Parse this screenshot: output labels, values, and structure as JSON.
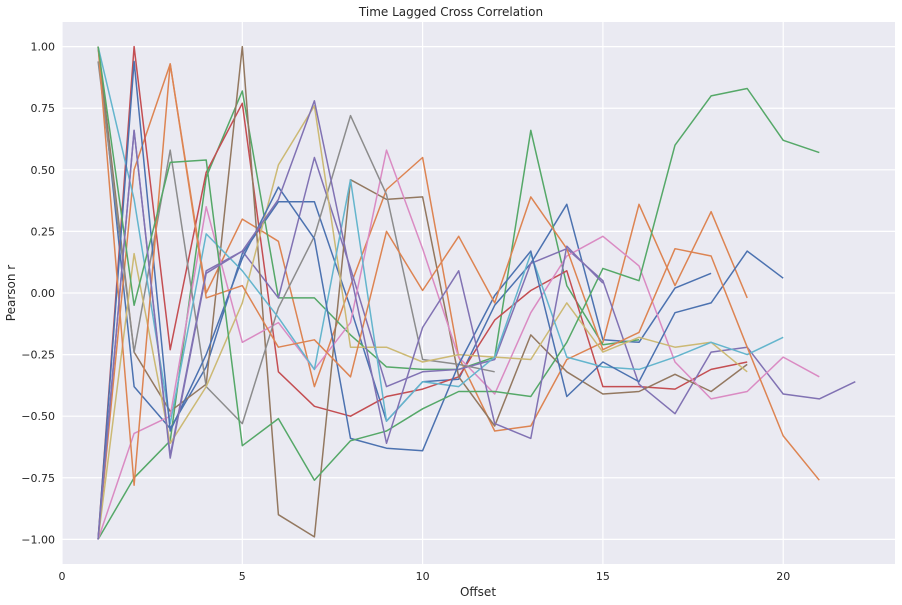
{
  "chart_data": {
    "type": "line",
    "title": "Time Lagged Cross Correlation",
    "xlabel": "Offset",
    "ylabel": "Pearson r",
    "xlim": [
      0,
      23.1
    ],
    "ylim": [
      -1.1,
      1.1
    ],
    "xticks": [
      0,
      5,
      10,
      15,
      20
    ],
    "xtick_labels": [
      "0",
      "5",
      "10",
      "15",
      "20"
    ],
    "yticks": [
      -1.0,
      -0.75,
      -0.5,
      -0.25,
      0.0,
      0.25,
      0.5,
      0.75,
      1.0
    ],
    "ytick_labels": [
      "−1.00",
      "−0.75",
      "−0.50",
      "−0.25",
      "0.00",
      "0.25",
      "0.50",
      "0.75",
      "1.00"
    ],
    "grid": true,
    "background": "#eaeaf2",
    "series": [
      {
        "color": "#4c72b0",
        "x": [
          1,
          2,
          3,
          4,
          5,
          6,
          7,
          8,
          9,
          10,
          11,
          12,
          13,
          14,
          15,
          16,
          17,
          18
        ],
        "y": [
          1.0,
          -0.38,
          -0.55,
          -0.3,
          0.16,
          0.37,
          0.37,
          -0.06,
          -0.52,
          -0.36,
          -0.35,
          -0.05,
          0.12,
          0.36,
          -0.19,
          -0.2,
          0.02,
          0.08
        ]
      },
      {
        "color": "#dd8452",
        "x": [
          1,
          2,
          3,
          4,
          5,
          6,
          7,
          8,
          9,
          10,
          11,
          12,
          13,
          14,
          15,
          16,
          17,
          18,
          19
        ],
        "y": [
          -1.0,
          0.5,
          0.93,
          0.0,
          0.3,
          0.21,
          -0.38,
          0.03,
          0.42,
          0.55,
          -0.26,
          -0.56,
          -0.54,
          -0.27,
          -0.2,
          0.36,
          0.03,
          0.33,
          -0.02
        ]
      },
      {
        "color": "#55a868",
        "x": [
          1,
          2,
          3,
          4,
          5,
          6,
          7,
          8,
          9,
          10,
          11,
          12,
          13,
          14,
          15,
          16
        ],
        "y": [
          -1.0,
          -0.75,
          -0.6,
          0.47,
          0.82,
          -0.02,
          -0.02,
          -0.17,
          -0.3,
          -0.31,
          -0.31,
          -0.26,
          0.66,
          0.03,
          -0.21,
          -0.19
        ]
      },
      {
        "color": "#c44e52",
        "x": [
          1,
          2,
          3,
          4,
          5,
          6,
          7,
          8,
          9,
          10,
          11,
          12,
          13,
          14,
          15,
          16,
          17,
          18,
          19
        ],
        "y": [
          -1.0,
          1.0,
          -0.23,
          0.49,
          0.77,
          -0.32,
          -0.46,
          -0.5,
          -0.42,
          -0.39,
          -0.34,
          -0.11,
          0.01,
          0.09,
          -0.38,
          -0.38,
          -0.39,
          -0.31,
          -0.28
        ]
      },
      {
        "color": "#8172b3",
        "x": [
          1,
          2,
          3,
          4,
          5,
          6,
          7,
          8,
          9,
          10,
          11,
          12,
          13,
          14,
          15,
          16,
          17,
          18,
          19,
          20,
          21,
          22
        ],
        "y": [
          -1.0,
          0.66,
          -0.66,
          0.09,
          0.17,
          -0.02,
          0.55,
          0.1,
          -0.38,
          -0.32,
          -0.31,
          -0.27,
          0.12,
          0.18,
          0.05,
          -0.37,
          -0.49,
          -0.24,
          -0.22,
          -0.41,
          -0.43,
          -0.36
        ]
      },
      {
        "color": "#937860",
        "x": [
          1,
          2,
          3,
          4,
          5,
          6,
          7,
          8,
          9,
          10,
          11,
          12,
          13,
          14,
          15,
          16,
          17,
          18,
          19
        ],
        "y": [
          1.0,
          -0.24,
          -0.48,
          -0.37,
          1.0,
          -0.9,
          -0.99,
          0.46,
          0.38,
          0.39,
          -0.34,
          -0.54,
          -0.17,
          -0.32,
          -0.41,
          -0.4,
          -0.33,
          -0.4,
          -0.29
        ]
      },
      {
        "color": "#da8bc3",
        "x": [
          1,
          2,
          3,
          4,
          5,
          6,
          7,
          8,
          9,
          10,
          11,
          12,
          13,
          14,
          15,
          16,
          17,
          18,
          19,
          20,
          21
        ],
        "y": [
          -1.0,
          -0.57,
          -0.5,
          0.35,
          -0.2,
          -0.12,
          -0.31,
          -0.12,
          0.58,
          0.18,
          -0.26,
          -0.41,
          -0.08,
          0.15,
          0.23,
          0.11,
          -0.28,
          -0.43,
          -0.4,
          -0.26,
          -0.34
        ]
      },
      {
        "color": "#8c8c8c",
        "x": [
          1,
          2,
          3,
          4,
          5,
          6,
          7,
          8,
          9,
          10,
          11,
          12
        ],
        "y": [
          0.94,
          -0.24,
          0.58,
          -0.38,
          -0.53,
          -0.06,
          0.23,
          0.72,
          0.4,
          -0.27,
          -0.29,
          -0.32
        ]
      },
      {
        "color": "#ccb974",
        "x": [
          1,
          2,
          3,
          4,
          5,
          6,
          7,
          8,
          9,
          10,
          11,
          12,
          13,
          14,
          15,
          16,
          17,
          18,
          19
        ],
        "y": [
          -1.0,
          0.16,
          -0.61,
          -0.38,
          -0.04,
          0.52,
          0.76,
          -0.22,
          -0.22,
          -0.28,
          -0.25,
          -0.26,
          -0.27,
          -0.04,
          -0.24,
          -0.18,
          -0.22,
          -0.2,
          -0.32
        ]
      },
      {
        "color": "#64b5cd",
        "x": [
          1,
          2,
          3,
          4,
          5,
          6,
          7,
          8,
          9,
          10,
          11,
          12,
          13,
          14,
          15,
          16,
          17,
          18,
          19,
          20
        ],
        "y": [
          1.0,
          0.38,
          -0.53,
          0.24,
          0.09,
          -0.1,
          -0.31,
          0.46,
          -0.52,
          -0.36,
          -0.38,
          -0.26,
          0.16,
          -0.26,
          -0.3,
          -0.31,
          -0.26,
          -0.2,
          -0.25,
          -0.18
        ]
      },
      {
        "color": "#4c72b0",
        "x": [
          1,
          2,
          3,
          4,
          5,
          6,
          7,
          8,
          9,
          10,
          11,
          12,
          13,
          14,
          15,
          16,
          17,
          18,
          19,
          20
        ],
        "y": [
          -1.0,
          0.94,
          -0.56,
          -0.25,
          0.14,
          0.43,
          0.22,
          -0.59,
          -0.63,
          -0.64,
          -0.29,
          -0.01,
          0.17,
          -0.42,
          -0.28,
          -0.36,
          -0.08,
          -0.04,
          0.17,
          0.06
        ]
      },
      {
        "color": "#dd8452",
        "x": [
          1,
          2,
          3,
          4,
          5,
          6,
          7,
          8,
          9,
          10,
          11,
          12,
          13,
          14,
          15,
          16,
          17,
          18,
          19,
          20,
          21
        ],
        "y": [
          1.0,
          -0.78,
          0.93,
          -0.02,
          0.03,
          -0.22,
          -0.19,
          -0.34,
          0.25,
          0.01,
          0.23,
          -0.04,
          0.39,
          0.18,
          -0.23,
          -0.16,
          0.18,
          0.15,
          -0.22,
          -0.58,
          -0.76
        ]
      },
      {
        "color": "#55a868",
        "x": [
          1,
          2,
          3,
          4,
          5,
          6,
          7,
          8,
          9,
          10,
          11,
          12,
          13,
          14,
          15,
          16,
          17,
          18,
          19,
          20,
          21
        ],
        "y": [
          1.0,
          -0.05,
          0.53,
          0.54,
          -0.62,
          -0.51,
          -0.76,
          -0.6,
          -0.56,
          -0.47,
          -0.4,
          -0.4,
          -0.42,
          -0.2,
          0.1,
          0.05,
          0.6,
          0.8,
          0.83,
          0.62,
          0.57
        ]
      },
      {
        "color": "#8172b3",
        "x": [
          1,
          2,
          3,
          4,
          5,
          6,
          7,
          8,
          9,
          10,
          11,
          12,
          13,
          14,
          15
        ],
        "y": [
          -1.0,
          0.66,
          -0.67,
          0.08,
          0.17,
          0.38,
          0.78,
          0.08,
          -0.61,
          -0.14,
          0.09,
          -0.53,
          -0.59,
          0.19,
          0.04
        ]
      }
    ]
  }
}
